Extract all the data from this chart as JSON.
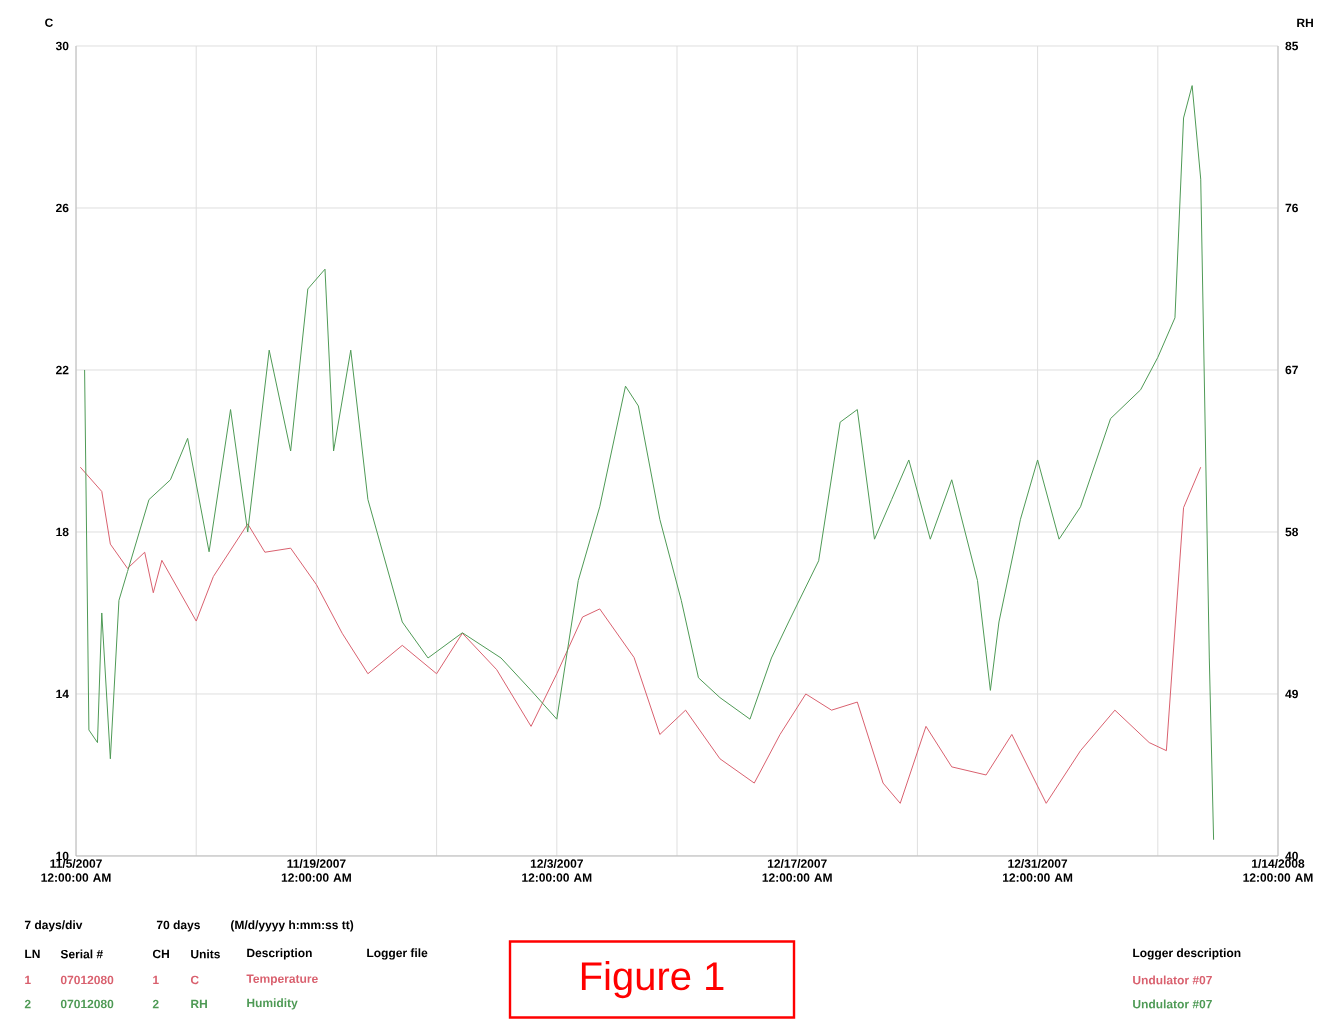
{
  "chart_data": {
    "type": "line",
    "ylabel": "C",
    "y2label": "RH",
    "xlim": [
      "2007-11-05",
      "2008-01-14"
    ],
    "xticks": [
      {
        "value": "2007-11-05",
        "label": "11/5/2007 12:00:00 AM"
      },
      {
        "value": "2007-11-12",
        "label": null
      },
      {
        "value": "2007-11-19",
        "label": "11/19/2007 12:00:00 AM"
      },
      {
        "value": "2007-11-26",
        "label": null
      },
      {
        "value": "2007-12-03",
        "label": "12/3/2007 12:00:00 AM"
      },
      {
        "value": "2007-12-10",
        "label": null
      },
      {
        "value": "2007-12-17",
        "label": "12/17/2007 12:00:00 AM"
      },
      {
        "value": "2007-12-24",
        "label": null
      },
      {
        "value": "2007-12-31",
        "label": "12/31/2007 12:00:00 AM"
      },
      {
        "value": "2008-01-07",
        "label": null
      },
      {
        "value": "2008-01-14",
        "label": "1/14/2008 12:00:00 AM"
      }
    ],
    "ylim": [
      10,
      30
    ],
    "yticks": [
      10,
      14,
      18,
      22,
      26,
      30
    ],
    "y2lim": [
      40,
      85
    ],
    "y2ticks": [
      40,
      49,
      58,
      67,
      76,
      85
    ],
    "grid": true,
    "series": [
      {
        "color": "#d9606e",
        "x": [
          "2007-11-05T06:00",
          "2007-11-06T12:00",
          "2007-11-07",
          "2007-11-08",
          "2007-11-09",
          "2007-11-09T12:00",
          "2007-11-10",
          "2007-11-12",
          "2007-11-13",
          "2007-11-15",
          "2007-11-16",
          "2007-11-17T12:00",
          "2007-11-19",
          "2007-11-20T12:00",
          "2007-11-22",
          "2007-11-24",
          "2007-11-26",
          "2007-11-27T12:00",
          "2007-11-29T12:00",
          "2007-12-01T12:00",
          "2007-12-03",
          "2007-12-04T12:00",
          "2007-12-05T12:00",
          "2007-12-07T12:00",
          "2007-12-09",
          "2007-12-10T12:00",
          "2007-12-12T12:00",
          "2007-12-14T12:00",
          "2007-12-16",
          "2007-12-17T12:00",
          "2007-12-19",
          "2007-12-20T12:00",
          "2007-12-22",
          "2007-12-23",
          "2007-12-24T12:00",
          "2007-12-26",
          "2007-12-28",
          "2007-12-29T12:00",
          "2007-12-31T12:00",
          "2008-01-02T12:00",
          "2008-01-04T12:00",
          "2008-01-06T12:00",
          "2008-01-07T12:00",
          "2008-01-08T12:00",
          "2008-01-09T12:00"
        ],
        "values": [
          19.6,
          19.0,
          17.7,
          17.1,
          17.5,
          16.5,
          17.3,
          15.8,
          16.9,
          18.2,
          17.5,
          17.6,
          16.7,
          15.5,
          14.5,
          15.2,
          14.5,
          15.5,
          14.6,
          13.2,
          14.5,
          15.9,
          16.1,
          14.9,
          13.0,
          13.6,
          12.4,
          11.8,
          13.0,
          14.0,
          13.6,
          13.8,
          11.8,
          11.3,
          13.2,
          12.2,
          12.0,
          13.0,
          11.3,
          12.6,
          13.6,
          12.8,
          12.6,
          18.6,
          19.6
        ]
      },
      {
        "color": "#4e9a55",
        "axis": "y2",
        "x": [
          "2007-11-05T12:00",
          "2007-11-05T18:00",
          "2007-11-06T06:00",
          "2007-11-06T12:00",
          "2007-11-07",
          "2007-11-07T12:00",
          "2007-11-08",
          "2007-11-09T06:00",
          "2007-11-10T12:00",
          "2007-11-11T12:00",
          "2007-11-12T18:00",
          "2007-11-14",
          "2007-11-15",
          "2007-11-16T06:00",
          "2007-11-17T12:00",
          "2007-11-18T12:00",
          "2007-11-19T12:00",
          "2007-11-20",
          "2007-11-21",
          "2007-11-22",
          "2007-11-24",
          "2007-11-25T12:00",
          "2007-11-27T12:00",
          "2007-11-29T18:00",
          "2007-12-01T12:00",
          "2007-12-03",
          "2007-12-04T06:00",
          "2007-12-05T12:00",
          "2007-12-07",
          "2007-12-07T18:00",
          "2007-12-09",
          "2007-12-10T06:00",
          "2007-12-11T06:00",
          "2007-12-12T12:00",
          "2007-12-14T06:00",
          "2007-12-15T12:00",
          "2007-12-16T12:00",
          "2007-12-18T06:00",
          "2007-12-19T12:00",
          "2007-12-20T12:00",
          "2007-12-21T12:00",
          "2007-12-22T12:00",
          "2007-12-23T12:00",
          "2007-12-24T18:00",
          "2007-12-26",
          "2007-12-27T12:00",
          "2007-12-28T06:00",
          "2007-12-28T18:00",
          "2007-12-30",
          "2007-12-31",
          "2008-01-01T06:00",
          "2008-01-02T12:00",
          "2008-01-04T06:00",
          "2008-01-06",
          "2008-01-07",
          "2008-01-08",
          "2008-01-08T12:00",
          "2008-01-09",
          "2008-01-09T12:00",
          "2008-01-10",
          "2008-01-10T06:00"
        ],
        "values": [
          67,
          47,
          46.3,
          53.5,
          45.4,
          54.2,
          55.8,
          59.8,
          60.9,
          63.2,
          56.9,
          64.8,
          58,
          68.1,
          62.5,
          71.5,
          72.6,
          62.5,
          68.1,
          59.8,
          53,
          51,
          52.4,
          51,
          49.2,
          47.6,
          55.3,
          59.4,
          66.1,
          65,
          58.7,
          54.2,
          49.9,
          48.8,
          47.6,
          51,
          53,
          56.4,
          64.1,
          64.8,
          57.6,
          59.8,
          62,
          57.6,
          60.9,
          55.3,
          49.2,
          53,
          58.7,
          62,
          57.6,
          59.4,
          64.3,
          65.9,
          67.7,
          69.9,
          81,
          82.8,
          77.6,
          51,
          40.9
        ]
      }
    ],
    "annotations": [
      "7 days/div",
      "70 days",
      "(M/d/yyyy h:mm:ss tt)",
      "LN",
      "Serial #",
      "CH",
      "Units",
      "Description",
      "Logger file",
      "Logger description",
      "1",
      "07012080",
      "1",
      "C",
      "Temperature",
      "Undulator #07",
      "2",
      "07012080",
      "2",
      "RH",
      "Humidity",
      "Undulator #07",
      "Figure 1"
    ]
  }
}
